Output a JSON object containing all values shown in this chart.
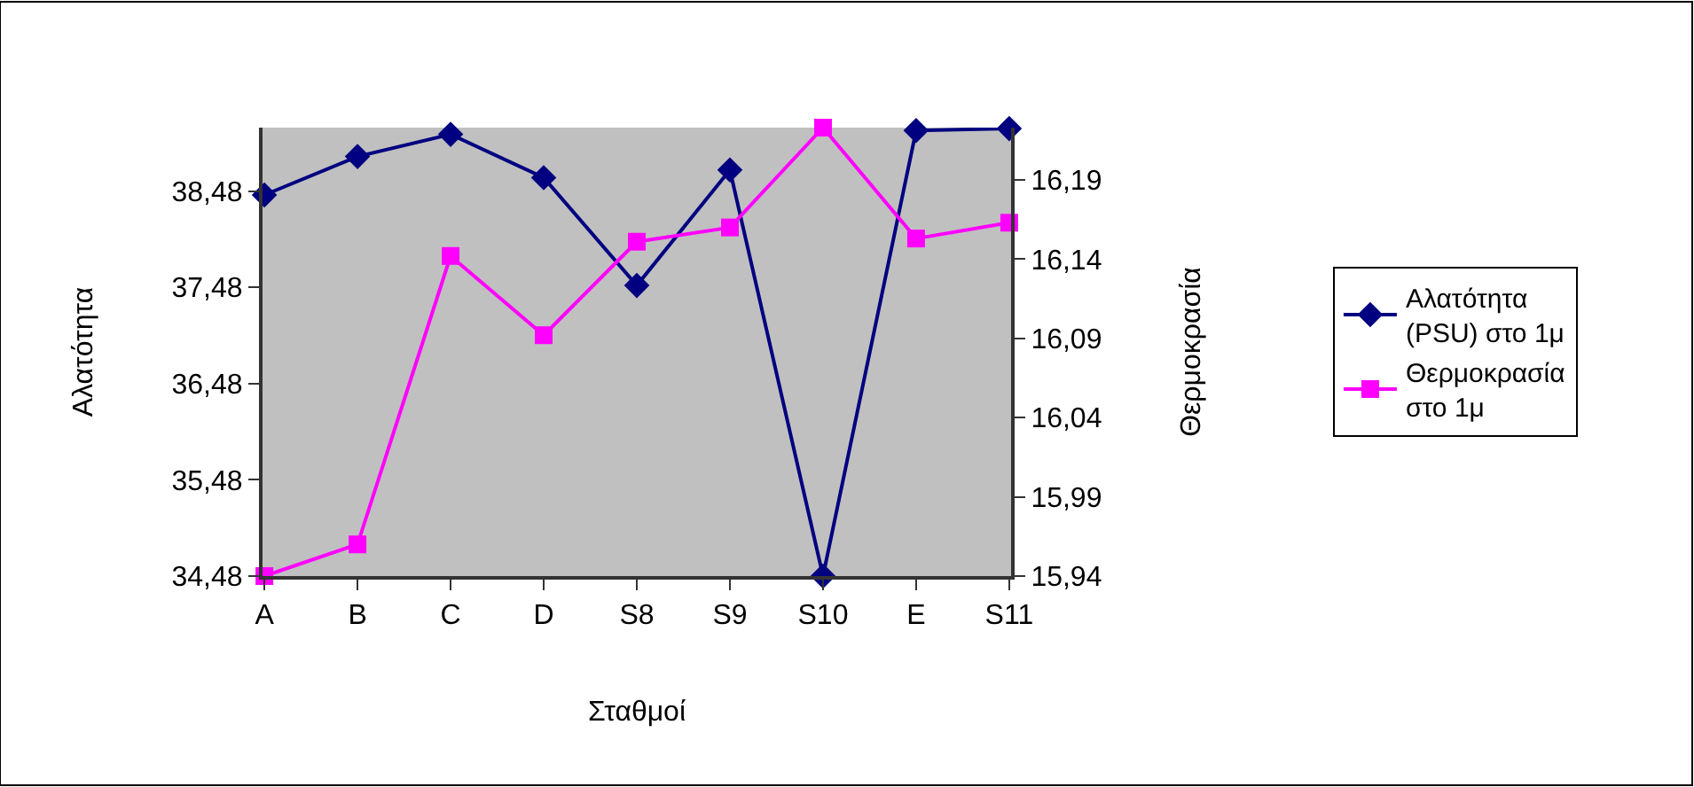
{
  "chart_data": {
    "type": "line",
    "xlabel": "Σταθμοί",
    "ylabel": "Αλατότητα",
    "y2label": "Θερμοκρασία",
    "categories": [
      "A",
      "B",
      "C",
      "D",
      "S8",
      "S9",
      "S10",
      "E",
      "S11"
    ],
    "series": [
      {
        "name": "Αλατότητα (PSU) στο 1μ",
        "color": "#000080",
        "marker": "diamond",
        "values": [
          38.44,
          38.84,
          39.07,
          38.62,
          37.5,
          38.7,
          34.48,
          39.11,
          39.13
        ]
      },
      {
        "name": "Θερμοκρασία στο 1μ",
        "color": "#ff00ff",
        "marker": "square",
        "axis": "y2",
        "values": [
          15.94,
          15.96,
          16.142,
          16.092,
          16.151,
          16.16,
          16.223,
          16.153,
          16.163
        ]
      }
    ],
    "ylim": [
      34.48,
      39.14
    ],
    "yticks": [
      {
        "value": 34.48,
        "label": "34,48"
      },
      {
        "value": 35.48,
        "label": "35,48"
      },
      {
        "value": 36.48,
        "label": "36,48"
      },
      {
        "value": 37.48,
        "label": "37,48"
      },
      {
        "value": 38.48,
        "label": "38,48"
      }
    ],
    "y2lim": [
      15.94,
      16.223
    ],
    "y2ticks": [
      {
        "value": 15.94,
        "label": "15,94"
      },
      {
        "value": 15.99,
        "label": "15,99"
      },
      {
        "value": 16.04,
        "label": "16,04"
      },
      {
        "value": 16.09,
        "label": "16,09"
      },
      {
        "value": 16.14,
        "label": "16,14"
      },
      {
        "value": 16.19,
        "label": "16,19"
      }
    ],
    "grid": false,
    "legend": "right",
    "line_style": "solid"
  }
}
